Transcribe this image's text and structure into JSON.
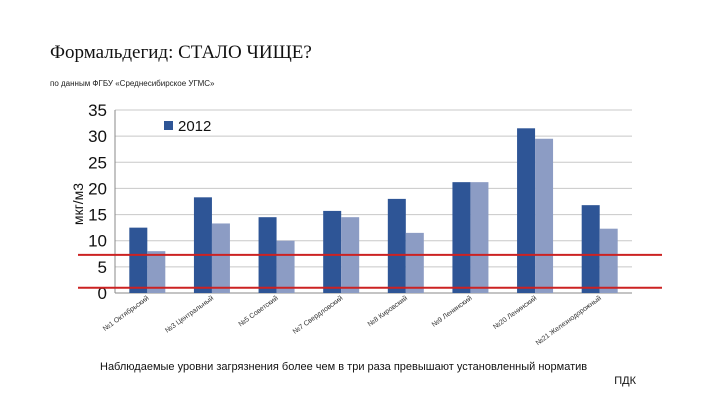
{
  "slide": {
    "title": "Формальдегид: СТАЛО ЧИЩЕ?",
    "subtitle": "по данным ФГБУ «Среднесибирское УГМС»",
    "footnote_line1": "Наблюдаемые уровни загрязнения более чем в три раза превышают установленный норматив",
    "footnote_line2": "ПДК"
  },
  "chart_data": {
    "type": "bar",
    "title": "",
    "xlabel": "",
    "ylabel": "мкг/м3",
    "ylim": [
      0,
      35
    ],
    "yticks": [
      0,
      5,
      10,
      15,
      20,
      25,
      30,
      35
    ],
    "grid": true,
    "legend_position": "top-left",
    "categories": [
      "№1 Октябрьский",
      "№3 Центральный",
      "№5 Советский",
      "№7 Свердловский",
      "№8 Кировский",
      "№9 Ленинский",
      "№20 Ленинский",
      "№21 Железнодорожный"
    ],
    "series": [
      {
        "name": "2012",
        "color": "#2e5596",
        "values": [
          12.5,
          18.3,
          14.5,
          15.7,
          18.0,
          21.2,
          31.5,
          16.8
        ]
      },
      {
        "name": "",
        "color": "#8c9cc4",
        "values": [
          8.0,
          13.3,
          10.0,
          14.5,
          11.5,
          21.2,
          29.5,
          12.3
        ]
      }
    ],
    "reference_lines": [
      {
        "value": 7.3,
        "color": "#cc2222"
      },
      {
        "value": 1.0,
        "color": "#cc2222"
      }
    ]
  }
}
